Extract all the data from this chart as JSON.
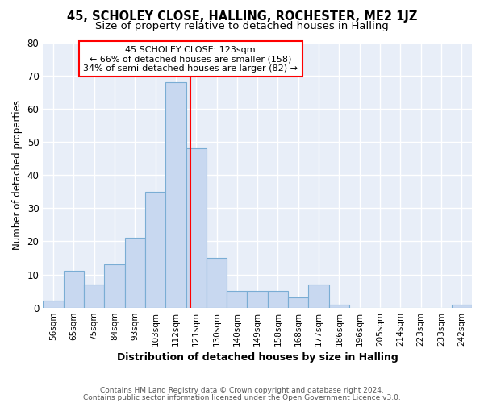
{
  "title_line1": "45, SCHOLEY CLOSE, HALLING, ROCHESTER, ME2 1JZ",
  "title_line2": "Size of property relative to detached houses in Halling",
  "xlabel": "Distribution of detached houses by size in Halling",
  "ylabel": "Number of detached properties",
  "categories": [
    "56sqm",
    "65sqm",
    "75sqm",
    "84sqm",
    "93sqm",
    "103sqm",
    "112sqm",
    "121sqm",
    "130sqm",
    "140sqm",
    "149sqm",
    "158sqm",
    "168sqm",
    "177sqm",
    "186sqm",
    "196sqm",
    "205sqm",
    "214sqm",
    "223sqm",
    "233sqm",
    "242sqm"
  ],
  "values": [
    2,
    11,
    7,
    13,
    21,
    35,
    68,
    48,
    15,
    5,
    5,
    5,
    3,
    7,
    1,
    0,
    0,
    0,
    0,
    0,
    1
  ],
  "bar_color": "#c8d8f0",
  "bar_edgecolor": "#7aadd4",
  "property_line_label": "45 SCHOLEY CLOSE: 123sqm",
  "annotation_line2": "← 66% of detached houses are smaller (158)",
  "annotation_line3": "34% of semi-detached houses are larger (82) →",
  "ylim": [
    0,
    80
  ],
  "yticks": [
    0,
    10,
    20,
    30,
    40,
    50,
    60,
    70,
    80
  ],
  "footer_line1": "Contains HM Land Registry data © Crown copyright and database right 2024.",
  "footer_line2": "Contains public sector information licensed under the Open Government Licence v3.0.",
  "background_color": "#e8eef8"
}
